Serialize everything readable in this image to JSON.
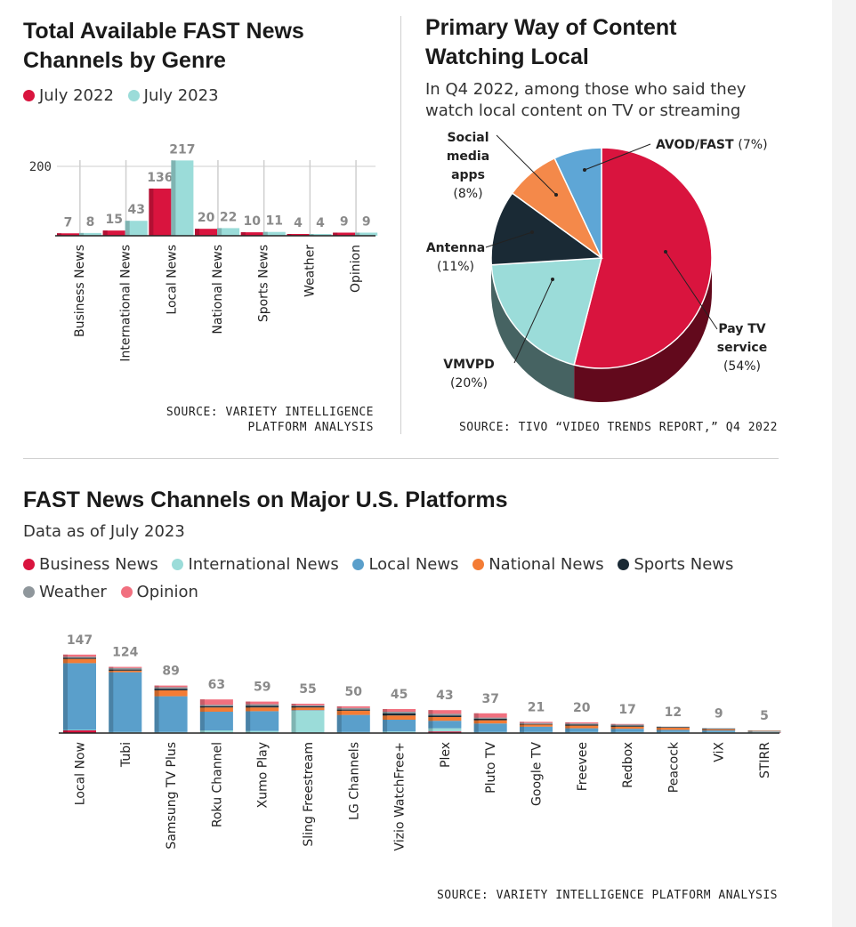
{
  "colors": {
    "business_news": "#d9143e",
    "international_news": "#9bdcd9",
    "local_news": "#5a9fcb",
    "national_news": "#f47c35",
    "sports_news": "#1a2a35",
    "weather": "#8f979c",
    "opinion": "#f1707f"
  },
  "genre": {
    "title": "Total Available FAST News Channels by Genre",
    "legend": [
      "July 2022",
      "July 2023"
    ],
    "source": "SOURCE: VARIETY INTELLIGENCE PLATFORM ANALYSIS"
  },
  "primary": {
    "title": "Primary Way of Content Watching Local",
    "subtitle": "In Q4 2022, among those who said they watch local content on TV or streaming",
    "source": "SOURCE: TIVO “VIDEO TRENDS REPORT,” Q4 2022"
  },
  "platforms": {
    "title": "FAST News Channels on Major U.S. Platforms",
    "subtitle": "Data as of July 2023",
    "legend": [
      "Business News",
      "International News",
      "Local News",
      "National News",
      "Sports News",
      "Weather",
      "Opinion"
    ],
    "source": "SOURCE: VARIETY INTELLIGENCE PLATFORM ANALYSIS"
  },
  "chart_data": [
    {
      "type": "bar",
      "title": "Total Available FAST News Channels by Genre",
      "categories": [
        "Business News",
        "International News",
        "Local News",
        "National News",
        "Sports News",
        "Weather",
        "Opinion"
      ],
      "series": [
        {
          "name": "July 2022",
          "color": "#d9143e",
          "values": [
            7,
            15,
            136,
            20,
            10,
            4,
            9
          ]
        },
        {
          "name": "July 2023",
          "color": "#9bdcd9",
          "values": [
            8,
            43,
            217,
            22,
            11,
            4,
            9
          ]
        }
      ],
      "yticks": [
        200
      ],
      "ylim": [
        0,
        220
      ],
      "grid": true,
      "legend": "top-left"
    },
    {
      "type": "pie",
      "title": "Primary Way of Content Watching Local",
      "slices": [
        {
          "label": "Pay TV service",
          "value": 54,
          "display": "(54%)",
          "color": "#d9143e"
        },
        {
          "label": "VMVPD",
          "value": 20,
          "display": "(20%)",
          "color": "#9bdcd9"
        },
        {
          "label": "Antenna",
          "value": 11,
          "display": "(11%)",
          "color": "#1a2a35"
        },
        {
          "label": "Social media apps",
          "value": 8,
          "display": "(8%)",
          "color": "#f4894a"
        },
        {
          "label": "AVOD/FAST",
          "value": 7,
          "display": "(7%)",
          "color": "#5ea6d6"
        }
      ]
    },
    {
      "type": "bar",
      "stacked": true,
      "title": "FAST News Channels on Major U.S. Platforms",
      "categories": [
        "Local Now",
        "Tubi",
        "Samsung TV Plus",
        "Roku Channel",
        "Xumo Play",
        "Sling Freestream",
        "LG Channels",
        "Vizio WatchFree+",
        "Plex",
        "Pluto TV",
        "Google TV",
        "Freevee",
        "Redbox",
        "Peacock",
        "ViX",
        "STIRR"
      ],
      "totals": [
        147,
        124,
        89,
        63,
        59,
        55,
        50,
        45,
        43,
        37,
        21,
        20,
        17,
        12,
        9,
        5
      ],
      "series": [
        {
          "name": "Business News",
          "values": [
            5,
            1,
            1,
            1,
            1,
            1,
            1,
            1,
            3,
            1,
            1,
            1,
            1,
            1,
            1,
            1
          ]
        },
        {
          "name": "International News",
          "values": [
            1,
            1,
            1,
            4,
            3,
            41,
            1,
            2,
            6,
            1,
            1,
            1,
            1,
            1,
            1,
            1
          ]
        },
        {
          "name": "Local News",
          "values": [
            125,
            112,
            67,
            35,
            37,
            1,
            32,
            22,
            14,
            16,
            10,
            7,
            6,
            4,
            3,
            1
          ]
        },
        {
          "name": "National News",
          "values": [
            8,
            3,
            11,
            8,
            7,
            5,
            8,
            8,
            7,
            6,
            4,
            5,
            4,
            4,
            2,
            1
          ]
        },
        {
          "name": "Sports News",
          "values": [
            2,
            2,
            3,
            2,
            3,
            2,
            2,
            4,
            3,
            3,
            1,
            2,
            2,
            1,
            1,
            0
          ]
        },
        {
          "name": "Weather",
          "values": [
            2,
            3,
            3,
            3,
            3,
            2,
            3,
            3,
            3,
            2,
            2,
            2,
            2,
            1,
            1,
            1
          ]
        },
        {
          "name": "Opinion",
          "values": [
            4,
            2,
            3,
            10,
            5,
            3,
            3,
            5,
            7,
            8,
            2,
            2,
            1,
            0,
            0,
            0
          ]
        }
      ],
      "grid": false,
      "legend": "top-left"
    }
  ]
}
